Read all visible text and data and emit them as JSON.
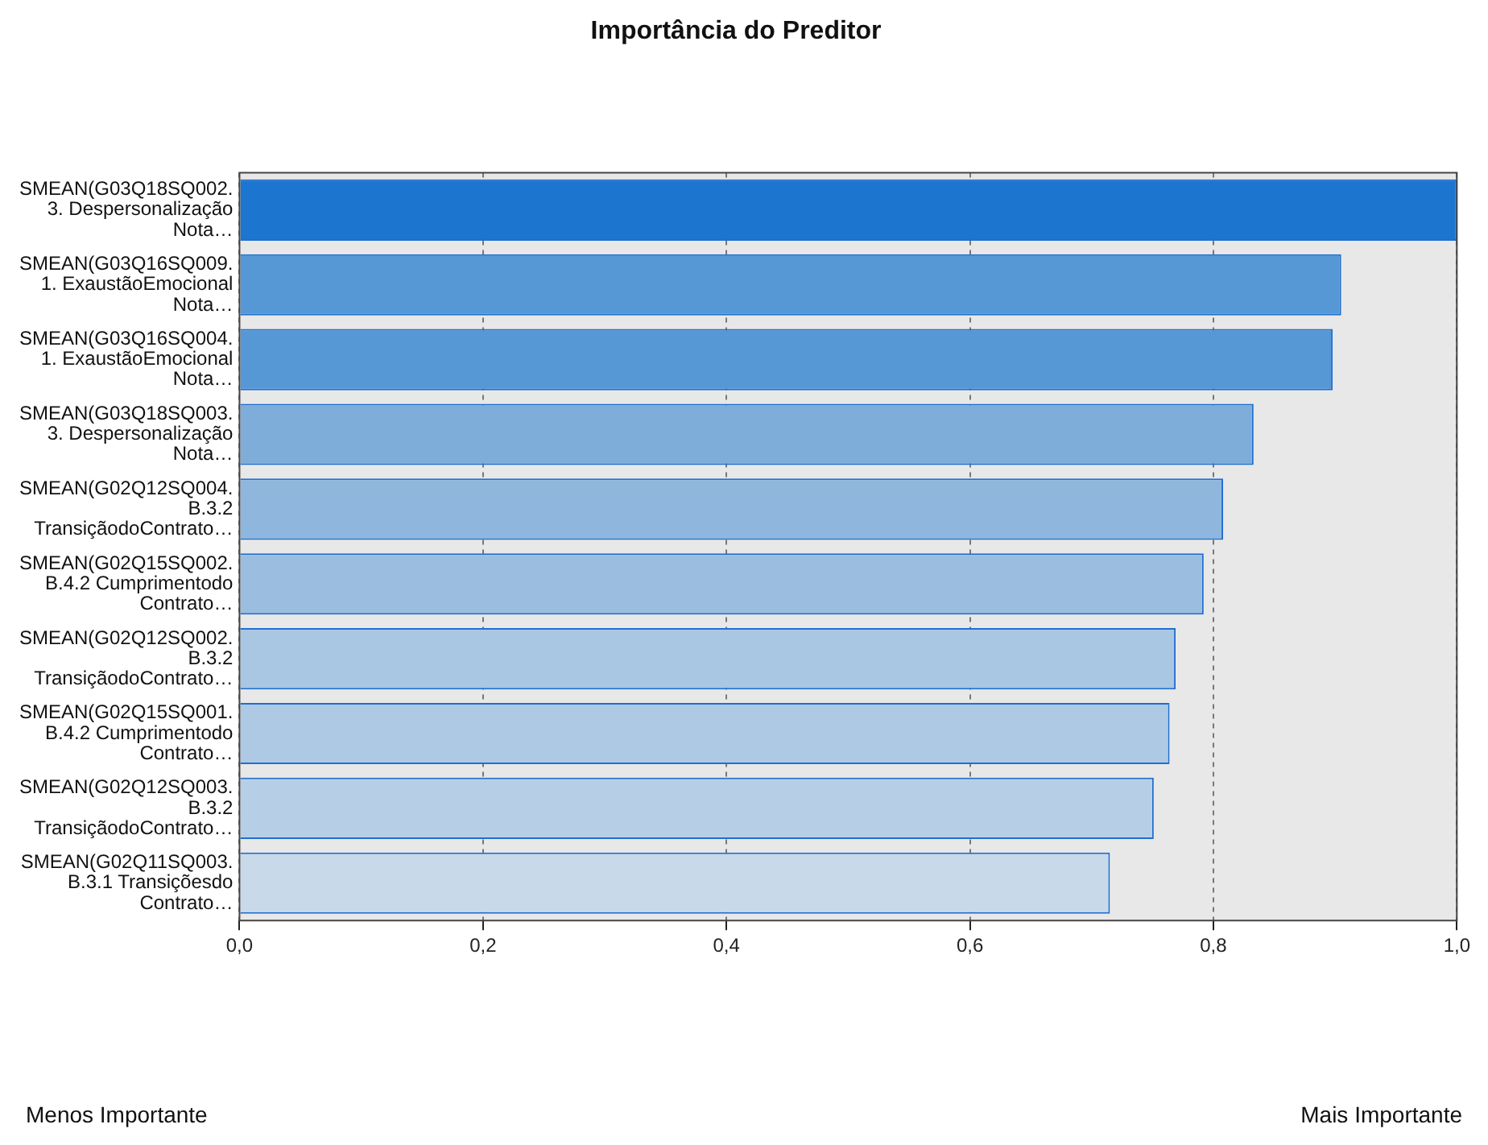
{
  "chart_data": {
    "type": "bar",
    "orientation": "horizontal",
    "title": "Importância do Preditor",
    "categories": [
      "SMEAN(G03Q18SQ002.\n3. Despersonalização\nNota…",
      "SMEAN(G03Q16SQ009.\n1. ExaustãoEmocional\nNota…",
      "SMEAN(G03Q16SQ004.\n1. ExaustãoEmocional\nNota…",
      "SMEAN(G03Q18SQ003.\n3. Despersonalização\nNota…",
      "SMEAN(G02Q12SQ004.\nB.3.2\nTransiçãodoContrato…",
      "SMEAN(G02Q15SQ002.\nB.4.2 Cumprimentodo\nContrato…",
      "SMEAN(G02Q12SQ002.\nB.3.2\nTransiçãodoContrato…",
      "SMEAN(G02Q15SQ001.\nB.4.2 Cumprimentodo\nContrato…",
      "SMEAN(G02Q12SQ003.\nB.3.2\nTransiçãodoContrato…",
      "SMEAN(G02Q11SQ003.\nB.3.1 Transiçõesdo\nContrato…"
    ],
    "values": [
      1.0,
      0.905,
      0.898,
      0.833,
      0.808,
      0.792,
      0.769,
      0.764,
      0.751,
      0.715
    ],
    "colors": [
      "#1c75cf",
      "#5698d6",
      "#5698d6",
      "#7eadda",
      "#8fb7de",
      "#9bbee0",
      "#a9c7e3",
      "#adc9e4",
      "#b7cfe6",
      "#c8d9e9"
    ],
    "xlim": [
      0,
      1
    ],
    "xticks": [
      {
        "value": 0,
        "label": "0,0"
      },
      {
        "value": 0.2,
        "label": "0,2"
      },
      {
        "value": 0.4,
        "label": "0,4"
      },
      {
        "value": 0.6,
        "label": "0,6"
      },
      {
        "value": 0.8,
        "label": "0,8"
      },
      {
        "value": 1,
        "label": "1,0"
      }
    ],
    "grid": "x",
    "annotations": [
      "Menos Importante",
      "Mais Importante"
    ]
  }
}
